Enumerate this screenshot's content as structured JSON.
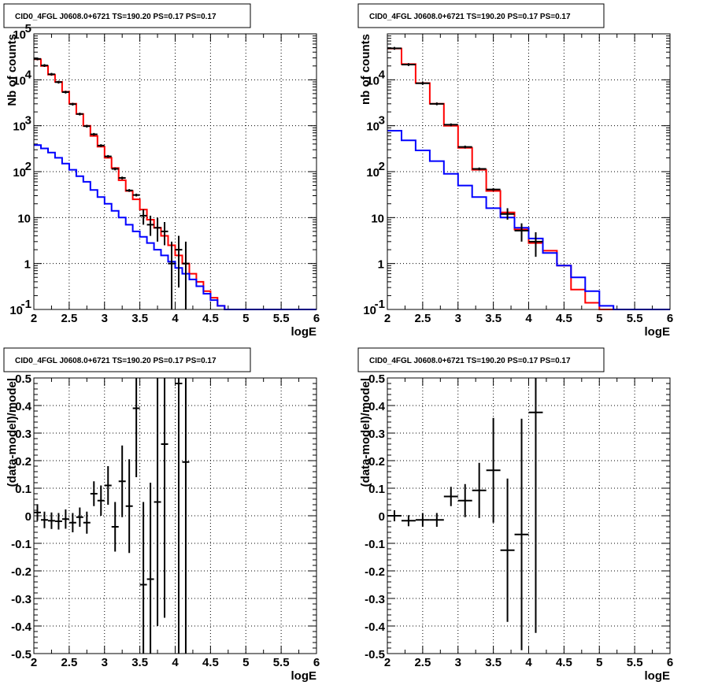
{
  "chart_data": [
    {
      "type": "line",
      "title": "CID0_4FGL J0608.0+6721 TS=190.20 PS=0.17 PS=0.17",
      "xlabel": "logE",
      "ylabel": "Nb of counts",
      "xlim": [
        2,
        6
      ],
      "ylim": [
        0.1,
        100000
      ],
      "yscale": "log",
      "grid": true,
      "xticks": [
        "2",
        "2.5",
        "3",
        "3.5",
        "4",
        "4.5",
        "5",
        "5.5",
        "6"
      ],
      "yticks": [
        {
          "v": 0.1,
          "label": "10^-1"
        },
        {
          "v": 1,
          "label": "1"
        },
        {
          "v": 10,
          "label": "10"
        },
        {
          "v": 100,
          "label": "10^2"
        },
        {
          "v": 1000,
          "label": "10^3"
        },
        {
          "v": 10000,
          "label": "10^4"
        },
        {
          "v": 100000,
          "label": "10^5"
        }
      ],
      "bin_edges": [
        2.0,
        2.1,
        2.2,
        2.3,
        2.4,
        2.5,
        2.6,
        2.7,
        2.8,
        2.9,
        3.0,
        3.1,
        3.2,
        3.3,
        3.4,
        3.5,
        3.6,
        3.7,
        3.8,
        3.9,
        4.0,
        4.1,
        4.2,
        4.3,
        4.4,
        4.5,
        4.6,
        4.7,
        4.8,
        4.9,
        5.0,
        5.1,
        5.2,
        5.3,
        5.4,
        5.5,
        5.6,
        5.7,
        5.8,
        5.9,
        6.0
      ],
      "series": [
        {
          "color": "#ff0000",
          "values": [
            28000,
            20000,
            13000,
            9000,
            5500,
            3000,
            1800,
            1000,
            600,
            350,
            200,
            120,
            65,
            38,
            25,
            15,
            9,
            6,
            4,
            2.5,
            1.5,
            1,
            0.6,
            0.4,
            0.25,
            0.18,
            0.12,
            0.1,
            0.1,
            0.1,
            0.1,
            0.1,
            0.1,
            0.1,
            0.1,
            0.1,
            0.1,
            0.1,
            0.1,
            0.1
          ]
        },
        {
          "color": "#0000ff",
          "values": [
            380,
            320,
            260,
            200,
            150,
            110,
            80,
            60,
            40,
            28,
            20,
            14,
            10,
            7,
            5,
            3.8,
            2.8,
            2.0,
            1.5,
            1.1,
            0.8,
            0.6,
            0.45,
            0.32,
            0.22,
            0.16,
            0.12,
            0.1,
            0.1,
            0.1,
            0.1,
            0.1,
            0.1,
            0.1,
            0.1,
            0.1,
            0.1,
            0.1,
            0.1,
            0.1
          ]
        }
      ],
      "data_points": [
        {
          "x": 2.05,
          "y": 28500
        },
        {
          "x": 2.15,
          "y": 20500
        },
        {
          "x": 2.25,
          "y": 13200
        },
        {
          "x": 2.35,
          "y": 8900
        },
        {
          "x": 2.45,
          "y": 5400
        },
        {
          "x": 2.55,
          "y": 2950
        },
        {
          "x": 2.65,
          "y": 1800
        },
        {
          "x": 2.75,
          "y": 980
        },
        {
          "x": 2.85,
          "y": 650
        },
        {
          "x": 2.95,
          "y": 370
        },
        {
          "x": 3.05,
          "y": 215
        },
        {
          "x": 3.15,
          "y": 115
        },
        {
          "x": 3.25,
          "y": 73
        },
        {
          "x": 3.35,
          "y": 39
        },
        {
          "x": 3.45,
          "y": 31
        },
        {
          "x": 3.55,
          "y": 11,
          "lo": 7,
          "hi": 15
        },
        {
          "x": 3.65,
          "y": 7,
          "lo": 4,
          "hi": 11
        },
        {
          "x": 3.75,
          "y": 6,
          "lo": 3,
          "hi": 10
        },
        {
          "x": 3.85,
          "y": 5,
          "lo": 2.5,
          "hi": 8
        },
        {
          "x": 3.95,
          "y": 1,
          "lo": 0.1,
          "hi": 3
        },
        {
          "x": 4.05,
          "y": 2,
          "lo": 0.3,
          "hi": 4
        },
        {
          "x": 4.15,
          "y": 1,
          "lo": 0.1,
          "hi": 3
        }
      ]
    },
    {
      "type": "line",
      "title": "CID0_4FGL J0608.0+6721 TS=190.20 PS=0.17 PS=0.17",
      "xlabel": "logE",
      "ylabel": "nb of counts",
      "xlim": [
        2,
        6
      ],
      "ylim": [
        0.1,
        100000
      ],
      "yscale": "log",
      "grid": true,
      "xticks": [
        "2",
        "2.5",
        "3",
        "3.5",
        "4",
        "4.5",
        "5",
        "5.5",
        "6"
      ],
      "yticks": [
        {
          "v": 0.1,
          "label": "10^-1"
        },
        {
          "v": 1,
          "label": "1"
        },
        {
          "v": 10,
          "label": "10"
        },
        {
          "v": 100,
          "label": "10^2"
        },
        {
          "v": 1000,
          "label": "10^3"
        },
        {
          "v": 10000,
          "label": "10^4"
        }
      ],
      "bin_edges": [
        2.0,
        2.2,
        2.4,
        2.6,
        2.8,
        3.0,
        3.2,
        3.4,
        3.6,
        3.8,
        4.0,
        4.2,
        4.4,
        4.6,
        4.8,
        5.0,
        5.2,
        5.4,
        5.6,
        5.8,
        6.0
      ],
      "series": [
        {
          "color": "#ff0000",
          "values": [
            48000,
            22000,
            8500,
            3000,
            1000,
            330,
            110,
            38,
            13,
            5.5,
            2.8,
            1.9,
            0.9,
            0.27,
            0.14,
            0.1,
            0.1,
            0.1,
            0.1,
            0.1
          ]
        },
        {
          "color": "#0000ff",
          "values": [
            780,
            480,
            290,
            170,
            90,
            50,
            28,
            16,
            10,
            6,
            3.5,
            1.7,
            0.9,
            0.5,
            0.25,
            0.12,
            0.1,
            0.1,
            0.1,
            0.1
          ]
        }
      ],
      "data_points": [
        {
          "x": 2.1,
          "y": 48500
        },
        {
          "x": 2.3,
          "y": 21500
        },
        {
          "x": 2.5,
          "y": 8400
        },
        {
          "x": 2.7,
          "y": 3000
        },
        {
          "x": 2.9,
          "y": 1050
        },
        {
          "x": 3.1,
          "y": 345
        },
        {
          "x": 3.3,
          "y": 115
        },
        {
          "x": 3.5,
          "y": 41
        },
        {
          "x": 3.7,
          "y": 12,
          "lo": 9,
          "hi": 16
        },
        {
          "x": 3.9,
          "y": 5.2,
          "lo": 3,
          "hi": 7.5
        },
        {
          "x": 4.1,
          "y": 3,
          "lo": 1.4,
          "hi": 4.8
        }
      ]
    },
    {
      "type": "scatter",
      "title": "CID0_4FGL J0608.0+6721 TS=190.20 PS=0.17 PS=0.17",
      "xlabel": "logE",
      "ylabel": "(data-model)/model",
      "xlim": [
        2,
        6
      ],
      "ylim": [
        -0.5,
        0.5
      ],
      "grid": true,
      "xticks": [
        "2",
        "2.5",
        "3",
        "3.5",
        "4",
        "4.5",
        "5",
        "5.5",
        "6"
      ],
      "yticks": [
        "-0.5",
        "-0.4",
        "-0.3",
        "-0.2",
        "-0.1",
        "0",
        "0.1",
        "0.2",
        "0.3",
        "0.4",
        "0.5"
      ],
      "binwidth": 0.1,
      "points": [
        {
          "x": 2.05,
          "y": 0.012,
          "err": 0.03
        },
        {
          "x": 2.15,
          "y": -0.015,
          "err": 0.03
        },
        {
          "x": 2.25,
          "y": -0.018,
          "err": 0.03
        },
        {
          "x": 2.35,
          "y": -0.02,
          "err": 0.03
        },
        {
          "x": 2.45,
          "y": -0.012,
          "err": 0.035
        },
        {
          "x": 2.55,
          "y": -0.025,
          "err": 0.035
        },
        {
          "x": 2.65,
          "y": -0.005,
          "err": 0.035
        },
        {
          "x": 2.75,
          "y": -0.025,
          "err": 0.04
        },
        {
          "x": 2.85,
          "y": 0.08,
          "err": 0.045
        },
        {
          "x": 2.95,
          "y": 0.055,
          "err": 0.055
        },
        {
          "x": 3.05,
          "y": 0.11,
          "err": 0.07
        },
        {
          "x": 3.15,
          "y": -0.04,
          "err": 0.09
        },
        {
          "x": 3.25,
          "y": 0.125,
          "err": 0.13
        },
        {
          "x": 3.35,
          "y": 0.035,
          "err": 0.17
        },
        {
          "x": 3.45,
          "y": 0.39,
          "err": 0.25
        },
        {
          "x": 3.55,
          "y": -0.25,
          "err": 0.3
        },
        {
          "x": 3.65,
          "y": -0.23,
          "err": 0.35
        },
        {
          "x": 3.75,
          "y": 0.05,
          "err": 0.45
        },
        {
          "x": 3.85,
          "y": 0.26,
          "err": 0.63
        },
        {
          "x": 4.05,
          "y": 0.48,
          "err": 1.0
        },
        {
          "x": 4.15,
          "y": 0.195,
          "err": 1.0
        }
      ]
    },
    {
      "type": "scatter",
      "title": "CID0_4FGL J0608.0+6721 TS=190.20 PS=0.17 PS=0.17",
      "xlabel": "logE",
      "ylabel": "(data-model)/model",
      "xlim": [
        2,
        6
      ],
      "ylim": [
        -0.5,
        0.5
      ],
      "grid": true,
      "xticks": [
        "2",
        "2.5",
        "3",
        "3.5",
        "4",
        "4.5",
        "5",
        "5.5",
        "6"
      ],
      "yticks": [
        "-0.5",
        "-0.4",
        "-0.3",
        "-0.2",
        "-0.1",
        "0",
        "0.1",
        "0.2",
        "0.3",
        "0.4",
        "0.5"
      ],
      "binwidth": 0.2,
      "points": [
        {
          "x": 2.1,
          "y": 0.0,
          "err": 0.02
        },
        {
          "x": 2.3,
          "y": -0.018,
          "err": 0.02
        },
        {
          "x": 2.5,
          "y": -0.015,
          "err": 0.025
        },
        {
          "x": 2.7,
          "y": -0.015,
          "err": 0.025
        },
        {
          "x": 2.9,
          "y": 0.07,
          "err": 0.035
        },
        {
          "x": 3.1,
          "y": 0.055,
          "err": 0.06
        },
        {
          "x": 3.3,
          "y": 0.092,
          "err": 0.1
        },
        {
          "x": 3.5,
          "y": 0.165,
          "err": 0.19
        },
        {
          "x": 3.7,
          "y": -0.125,
          "err": 0.26
        },
        {
          "x": 3.9,
          "y": -0.068,
          "err": 0.42
        },
        {
          "x": 4.1,
          "y": 0.375,
          "err": 0.8
        }
      ]
    }
  ]
}
